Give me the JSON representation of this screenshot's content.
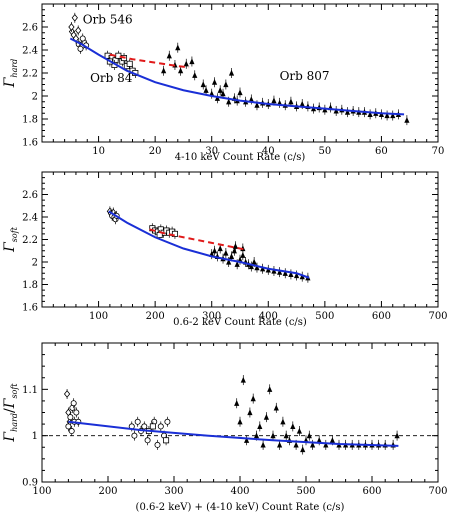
{
  "colors": {
    "fit_line": "#1a2fd6",
    "dash_line": "#e01a1a",
    "markers": "#000000",
    "reference_line": "#000000"
  },
  "chart_data": [
    {
      "type": "scatter",
      "xlabel": "4-10 keV Count Rate (c/s)",
      "ylabel_main": "Γ",
      "ylabel_sub": "hard",
      "xlim": [
        0,
        70
      ],
      "ylim": [
        1.6,
        2.8
      ],
      "xticks": [
        10,
        20,
        30,
        40,
        50,
        60,
        70
      ],
      "yticks": [
        1.6,
        1.8,
        2,
        2.2,
        2.4,
        2.6
      ],
      "ytick_labels": [
        "1.6",
        "1.8",
        "2",
        "2.2",
        "2.4",
        "2.6"
      ],
      "annotations": [
        {
          "text": "Orb 546",
          "x": 7.2,
          "y": 2.63
        },
        {
          "text": "Orb 84",
          "x": 8.5,
          "y": 2.12
        },
        {
          "text": "Orb 807",
          "x": 42,
          "y": 2.14
        }
      ],
      "series": [
        {
          "marker": "diamond",
          "points": [
            [
              5.3,
              2.56
            ],
            [
              5.6,
              2.53
            ],
            [
              6.0,
              2.5
            ],
            [
              5.8,
              2.68
            ],
            [
              5.2,
              2.6
            ],
            [
              6.4,
              2.57
            ]
          ]
        },
        {
          "marker": "circle",
          "points": [
            [
              6.5,
              2.45
            ],
            [
              7.0,
              2.43
            ],
            [
              7.4,
              2.47
            ],
            [
              6.8,
              2.41
            ],
            [
              7.8,
              2.44
            ],
            [
              7.2,
              2.5
            ]
          ]
        },
        {
          "marker": "square",
          "points": [
            [
              11.6,
              2.35
            ],
            [
              12.3,
              2.33
            ],
            [
              13.0,
              2.31
            ],
            [
              13.5,
              2.35
            ],
            [
              12.8,
              2.27
            ],
            [
              14.2,
              2.3
            ],
            [
              15.0,
              2.26
            ],
            [
              14.5,
              2.33
            ],
            [
              16.0,
              2.22
            ],
            [
              16.5,
              2.2
            ],
            [
              12.0,
              2.3
            ],
            [
              15.5,
              2.28
            ]
          ]
        },
        {
          "marker": "triangle",
          "points": [
            [
              21.5,
              2.22
            ],
            [
              22.5,
              2.35
            ],
            [
              23.5,
              2.27
            ],
            [
              24.5,
              2.22
            ],
            [
              25.5,
              2.28
            ],
            [
              24.0,
              2.42
            ],
            [
              26.5,
              2.3
            ],
            [
              27.0,
              2.18
            ],
            [
              28.5,
              2.1
            ],
            [
              29.0,
              2.05
            ],
            [
              30.0,
              2.02
            ],
            [
              30.5,
              2.12
            ],
            [
              31.0,
              1.98
            ],
            [
              31.5,
              2.05
            ],
            [
              32.0,
              2.02
            ],
            [
              32.5,
              2.1
            ],
            [
              33.0,
              1.95
            ],
            [
              33.5,
              2.2
            ],
            [
              34.0,
              1.98
            ],
            [
              34.5,
              1.96
            ],
            [
              35.0,
              2.03
            ],
            [
              36.0,
              1.95
            ],
            [
              37.0,
              1.97
            ],
            [
              38.0,
              1.92
            ],
            [
              39.0,
              1.94
            ],
            [
              40.0,
              1.93
            ],
            [
              41.0,
              1.96
            ],
            [
              42.0,
              1.94
            ],
            [
              43.0,
              1.92
            ],
            [
              44.0,
              1.95
            ],
            [
              45.0,
              1.91
            ],
            [
              46.0,
              1.93
            ],
            [
              47.0,
              1.91
            ],
            [
              48.0,
              1.89
            ],
            [
              49.0,
              1.9
            ],
            [
              50.0,
              1.88
            ],
            [
              51.0,
              1.9
            ],
            [
              52.0,
              1.87
            ],
            [
              53.0,
              1.88
            ],
            [
              54.0,
              1.86
            ],
            [
              55.0,
              1.87
            ],
            [
              56.0,
              1.86
            ],
            [
              57.0,
              1.86
            ],
            [
              58.0,
              1.84
            ],
            [
              59.0,
              1.85
            ],
            [
              60.0,
              1.84
            ],
            [
              61.0,
              1.83
            ],
            [
              62.0,
              1.83
            ],
            [
              63.0,
              1.84
            ],
            [
              64.5,
              1.79
            ]
          ]
        }
      ],
      "fit_curve": [
        [
          5,
          2.5
        ],
        [
          7,
          2.45
        ],
        [
          10,
          2.36
        ],
        [
          15,
          2.22
        ],
        [
          20,
          2.12
        ],
        [
          25,
          2.05
        ],
        [
          30,
          2.0
        ],
        [
          35,
          1.96
        ],
        [
          40,
          1.93
        ],
        [
          45,
          1.91
        ],
        [
          50,
          1.89
        ],
        [
          55,
          1.87
        ],
        [
          60,
          1.85
        ],
        [
          64,
          1.84
        ]
      ],
      "dash_curve": [
        [
          12,
          2.36
        ],
        [
          16,
          2.32
        ],
        [
          20,
          2.29
        ],
        [
          24,
          2.26
        ],
        [
          26,
          2.25
        ]
      ]
    },
    {
      "type": "scatter",
      "xlabel": "0.6-2 keV Count Rate (c/s)",
      "ylabel_main": "Γ",
      "ylabel_sub": "soft",
      "xlim": [
        0,
        700
      ],
      "ylim": [
        1.6,
        2.8
      ],
      "xticks": [
        100,
        200,
        300,
        400,
        500,
        600,
        700
      ],
      "yticks": [
        1.6,
        1.8,
        2,
        2.2,
        2.4,
        2.6
      ],
      "ytick_labels": [
        "1.6",
        "1.8",
        "2",
        "2.2",
        "2.4",
        "2.6"
      ],
      "series": [
        {
          "marker": "diamond",
          "points": [
            [
              120,
              2.45
            ],
            [
              122,
              2.43
            ],
            [
              126,
              2.44
            ]
          ]
        },
        {
          "marker": "circle",
          "points": [
            [
              124,
              2.41
            ],
            [
              128,
              2.4
            ],
            [
              130,
              2.38
            ],
            [
              132,
              2.41
            ]
          ]
        },
        {
          "marker": "square",
          "points": [
            [
              195,
              2.3
            ],
            [
              200,
              2.28
            ],
            [
              205,
              2.27
            ],
            [
              210,
              2.29
            ],
            [
              215,
              2.26
            ],
            [
              220,
              2.28
            ],
            [
              225,
              2.26
            ],
            [
              230,
              2.27
            ],
            [
              235,
              2.25
            ],
            [
              208,
              2.24
            ]
          ]
        },
        {
          "marker": "triangle",
          "points": [
            [
              300,
              2.07
            ],
            [
              305,
              2.1
            ],
            [
              310,
              2.05
            ],
            [
              315,
              2.12
            ],
            [
              320,
              2.03
            ],
            [
              325,
              2.08
            ],
            [
              330,
              2.0
            ],
            [
              335,
              2.05
            ],
            [
              340,
              2.1
            ],
            [
              345,
              1.98
            ],
            [
              350,
              2.02
            ],
            [
              355,
              2.06
            ],
            [
              360,
              2.0
            ],
            [
              365,
              1.98
            ],
            [
              370,
              1.96
            ],
            [
              375,
              2.0
            ],
            [
              380,
              1.95
            ],
            [
              390,
              1.94
            ],
            [
              400,
              1.93
            ],
            [
              410,
              1.92
            ],
            [
              420,
              1.91
            ],
            [
              430,
              1.9
            ],
            [
              440,
              1.89
            ],
            [
              450,
              1.88
            ],
            [
              460,
              1.87
            ],
            [
              470,
              1.86
            ],
            [
              342,
              2.14
            ],
            [
              355,
              2.12
            ]
          ]
        }
      ],
      "fit_curve": [
        [
          118,
          2.45
        ],
        [
          150,
          2.35
        ],
        [
          200,
          2.22
        ],
        [
          250,
          2.12
        ],
        [
          300,
          2.05
        ],
        [
          350,
          2.0
        ],
        [
          400,
          1.94
        ],
        [
          450,
          1.9
        ],
        [
          472,
          1.86
        ]
      ],
      "dash_curve": [
        [
          190,
          2.29
        ],
        [
          220,
          2.25
        ],
        [
          260,
          2.21
        ],
        [
          300,
          2.17
        ],
        [
          340,
          2.13
        ],
        [
          360,
          2.11
        ]
      ]
    },
    {
      "type": "scatter",
      "xlabel": "(0.6-2 keV) + (4-10 keV) Count Rate (c/s)",
      "ylabel_main": "Γ",
      "ylabel_sub": "hard",
      "ylabel_main2": "Γ",
      "ylabel_sub2": "soft",
      "xlim": [
        100,
        700
      ],
      "ylim": [
        0.9,
        1.2
      ],
      "xticks": [
        100,
        200,
        300,
        400,
        500,
        600,
        700
      ],
      "yticks": [
        0.9,
        1,
        1.1
      ],
      "ytick_labels": [
        "0.9",
        "1",
        "1.1"
      ],
      "reference_y": 1.0,
      "series": [
        {
          "marker": "diamond",
          "points": [
            [
              138,
              1.09
            ],
            [
              140,
              1.05
            ],
            [
              142,
              1.03
            ]
          ]
        },
        {
          "marker": "circle",
          "points": [
            [
              140,
              1.02
            ],
            [
              143,
              1.04
            ],
            [
              146,
              1.06
            ],
            [
              149,
              1.03
            ],
            [
              152,
              1.05
            ],
            [
              145,
              1.01
            ],
            [
              148,
              1.07
            ],
            [
              155,
              1.03
            ],
            [
              236,
              1.02
            ],
            [
              240,
              1.0
            ],
            [
              245,
              1.03
            ],
            [
              250,
              1.01
            ],
            [
              255,
              1.02
            ],
            [
              260,
              0.99
            ],
            [
              270,
              1.03
            ],
            [
              275,
              0.98
            ],
            [
              280,
              1.02
            ],
            [
              285,
              1.0
            ],
            [
              290,
              1.03
            ]
          ]
        },
        {
          "marker": "square",
          "points": [
            [
              262,
              1.01
            ],
            [
              268,
              1.02
            ],
            [
              288,
              0.99
            ]
          ]
        },
        {
          "marker": "triangle",
          "points": [
            [
              395,
              1.07
            ],
            [
              400,
              1.03
            ],
            [
              405,
              1.12
            ],
            [
              410,
              0.99
            ],
            [
              415,
              1.05
            ],
            [
              420,
              1.08
            ],
            [
              425,
              1.0
            ],
            [
              430,
              1.02
            ],
            [
              435,
              0.98
            ],
            [
              440,
              1.04
            ],
            [
              445,
              1.1
            ],
            [
              450,
              1.0
            ],
            [
              455,
              1.06
            ],
            [
              460,
              0.98
            ],
            [
              465,
              1.03
            ],
            [
              470,
              1.0
            ],
            [
              475,
              0.99
            ],
            [
              480,
              1.02
            ],
            [
              485,
              0.98
            ],
            [
              490,
              1.01
            ],
            [
              495,
              0.97
            ],
            [
              500,
              0.99
            ],
            [
              505,
              1.0
            ],
            [
              510,
              0.98
            ],
            [
              520,
              0.99
            ],
            [
              530,
              0.98
            ],
            [
              540,
              0.99
            ],
            [
              550,
              0.98
            ],
            [
              560,
              0.98
            ],
            [
              570,
              0.98
            ],
            [
              580,
              0.98
            ],
            [
              590,
              0.98
            ],
            [
              600,
              0.98
            ],
            [
              610,
              0.98
            ],
            [
              620,
              0.98
            ],
            [
              632,
              0.98
            ],
            [
              638,
              1.0
            ]
          ]
        }
      ],
      "fit_curve": [
        [
          140,
          1.03
        ],
        [
          250,
          1.012
        ],
        [
          350,
          1.0
        ],
        [
          450,
          0.99
        ],
        [
          550,
          0.982
        ],
        [
          640,
          0.978
        ]
      ]
    }
  ]
}
